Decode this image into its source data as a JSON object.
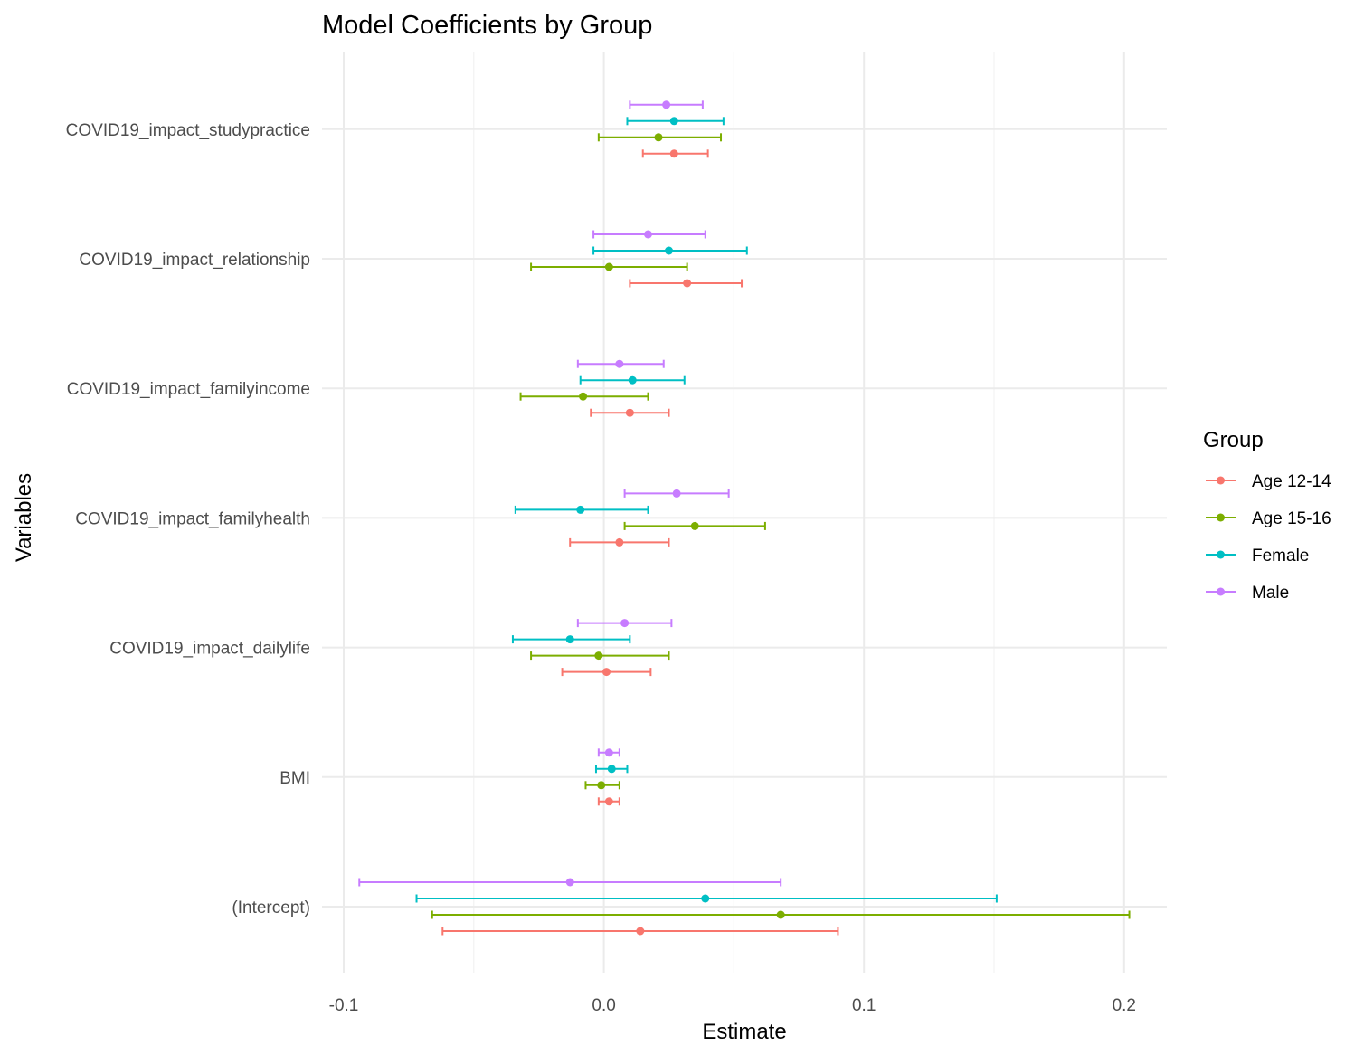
{
  "chart_data": {
    "type": "scatter",
    "subtype": "coefficient-dot-whisker",
    "title": "Model Coefficients by Group",
    "xlabel": "Estimate",
    "ylabel": "Variables",
    "xlim": [
      -0.108,
      0.216
    ],
    "x_ticks": [
      -0.1,
      0.0,
      0.1,
      0.2
    ],
    "x_tick_labels": [
      "-0.1",
      "0.0",
      "0.1",
      "0.2"
    ],
    "grid": true,
    "legend_title": "Group",
    "legend_position": "right",
    "categories": [
      "(Intercept)",
      "BMI",
      "COVID19_impact_dailylife",
      "COVID19_impact_familyhealth",
      "COVID19_impact_familyincome",
      "COVID19_impact_relationship",
      "COVID19_impact_studypractice"
    ],
    "series": [
      {
        "name": "Age 12-14",
        "color": "#F8766D",
        "estimate": [
          0.014,
          0.002,
          0.001,
          0.006,
          0.01,
          0.032,
          0.027
        ],
        "lower": [
          -0.062,
          -0.002,
          -0.016,
          -0.013,
          -0.005,
          0.01,
          0.015
        ],
        "upper": [
          0.09,
          0.006,
          0.018,
          0.025,
          0.025,
          0.053,
          0.04
        ]
      },
      {
        "name": "Age 15-16",
        "color": "#7CAE00",
        "estimate": [
          0.068,
          -0.001,
          -0.002,
          0.035,
          -0.008,
          0.002,
          0.021
        ],
        "lower": [
          -0.066,
          -0.007,
          -0.028,
          0.008,
          -0.032,
          -0.028,
          -0.002
        ],
        "upper": [
          0.202,
          0.006,
          0.025,
          0.062,
          0.017,
          0.032,
          0.045
        ]
      },
      {
        "name": "Female",
        "color": "#00BFC4",
        "estimate": [
          0.039,
          0.003,
          -0.013,
          -0.009,
          0.011,
          0.025,
          0.027
        ],
        "lower": [
          -0.072,
          -0.003,
          -0.035,
          -0.034,
          -0.009,
          -0.004,
          0.009
        ],
        "upper": [
          0.151,
          0.009,
          0.01,
          0.017,
          0.031,
          0.055,
          0.046
        ]
      },
      {
        "name": "Male",
        "color": "#C77CFF",
        "estimate": [
          -0.013,
          0.002,
          0.008,
          0.028,
          0.006,
          0.017,
          0.024
        ],
        "lower": [
          -0.094,
          -0.002,
          -0.01,
          0.008,
          -0.01,
          -0.004,
          0.01
        ],
        "upper": [
          0.068,
          0.006,
          0.026,
          0.048,
          0.023,
          0.039,
          0.038
        ]
      }
    ]
  }
}
